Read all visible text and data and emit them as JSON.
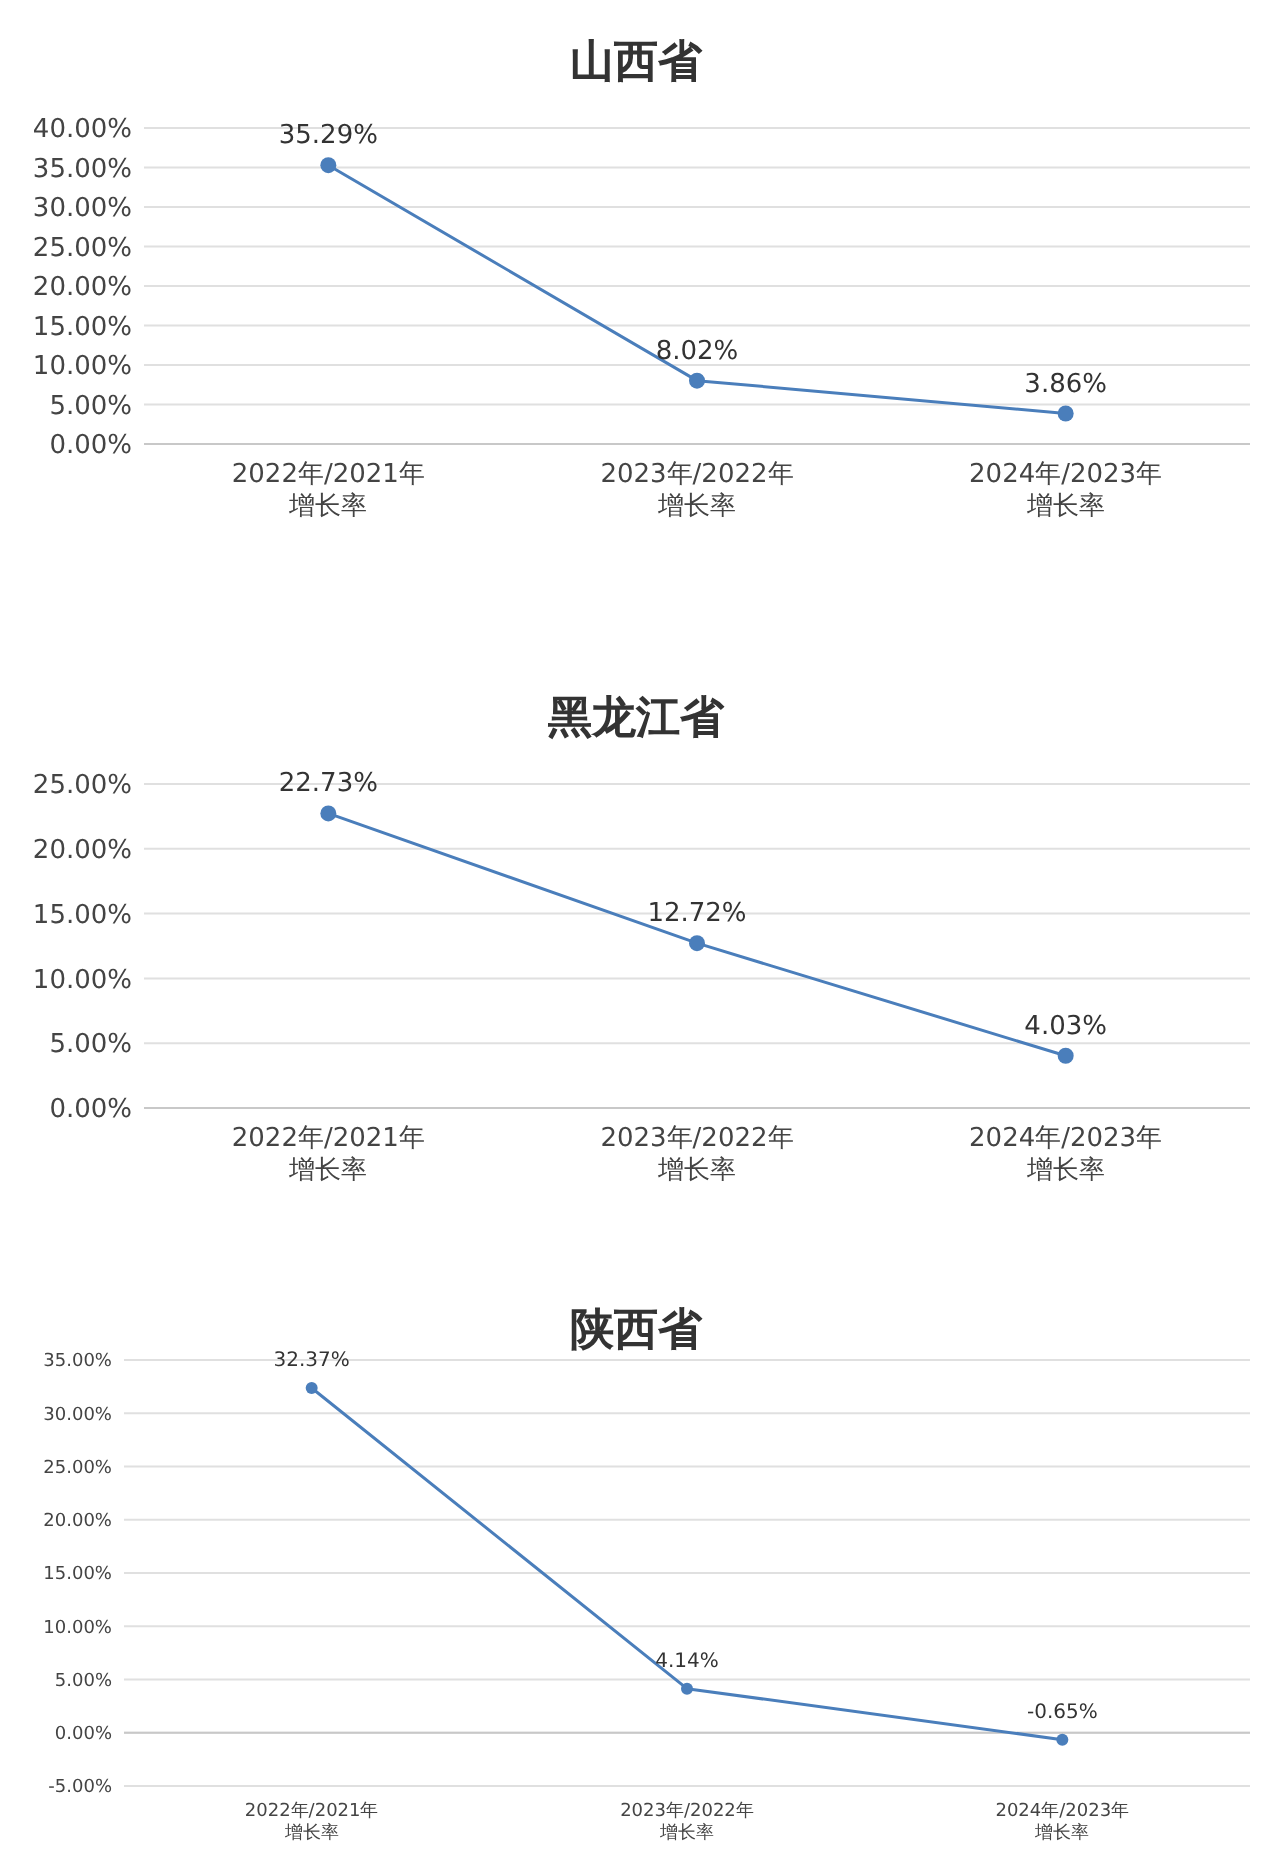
{
  "chart_data": [
    {
      "type": "line",
      "title": "山西省",
      "categories": [
        "2022年/2021年增长率",
        "2023年/2022年增长率",
        "2024年/2023年增长率"
      ],
      "series": [
        {
          "color": "#4a7ebb",
          "values": [
            35.29,
            8.02,
            3.86
          ],
          "value_labels": [
            "35.29%",
            "8.02%",
            "3.86%"
          ]
        }
      ],
      "ylim": [
        0,
        40
      ],
      "yticks": [
        {
          "value": 0,
          "label": "0.00%"
        },
        {
          "value": 5,
          "label": "5.00%"
        },
        {
          "value": 10,
          "label": "10.00%"
        },
        {
          "value": 15,
          "label": "15.00%"
        },
        {
          "value": 20,
          "label": "20.00%"
        },
        {
          "value": 25,
          "label": "25.00%"
        },
        {
          "value": 30,
          "label": "30.00%"
        },
        {
          "value": 35,
          "label": "35.00%"
        },
        {
          "value": 40,
          "label": "40.00%"
        }
      ],
      "grid": "y",
      "marker": "circle"
    },
    {
      "type": "line",
      "title": "黑龙江省",
      "categories": [
        "2022年/2021年增长率",
        "2023年/2022年增长率",
        "2024年/2023年增长率"
      ],
      "series": [
        {
          "color": "#4a7ebb",
          "values": [
            22.73,
            12.72,
            4.03
          ],
          "value_labels": [
            "22.73%",
            "12.72%",
            "4.03%"
          ]
        }
      ],
      "ylim": [
        0,
        25
      ],
      "yticks": [
        {
          "value": 0,
          "label": "0.00%"
        },
        {
          "value": 5,
          "label": "5.00%"
        },
        {
          "value": 10,
          "label": "10.00%"
        },
        {
          "value": 15,
          "label": "15.00%"
        },
        {
          "value": 20,
          "label": "20.00%"
        },
        {
          "value": 25,
          "label": "25.00%"
        }
      ],
      "grid": "y",
      "marker": "circle"
    },
    {
      "type": "line",
      "title": "陕西省",
      "categories": [
        "2022年/2021年增长率",
        "2023年/2022年增长率",
        "2024年/2023年增长率"
      ],
      "series": [
        {
          "color": "#4a7ebb",
          "values": [
            32.37,
            4.14,
            -0.65
          ],
          "value_labels": [
            "32.37%",
            "4.14%",
            "-0.65%"
          ]
        }
      ],
      "ylim": [
        -5,
        35
      ],
      "yticks": [
        {
          "value": -5,
          "label": "-5.00%"
        },
        {
          "value": 0,
          "label": "0.00%"
        },
        {
          "value": 5,
          "label": "5.00%"
        },
        {
          "value": 10,
          "label": "10.00%"
        },
        {
          "value": 15,
          "label": "15.00%"
        },
        {
          "value": 20,
          "label": "20.00%"
        },
        {
          "value": 25,
          "label": "25.00%"
        },
        {
          "value": 30,
          "label": "30.00%"
        },
        {
          "value": 35,
          "label": "35.00%"
        }
      ],
      "grid": "y",
      "marker": "circle"
    }
  ]
}
